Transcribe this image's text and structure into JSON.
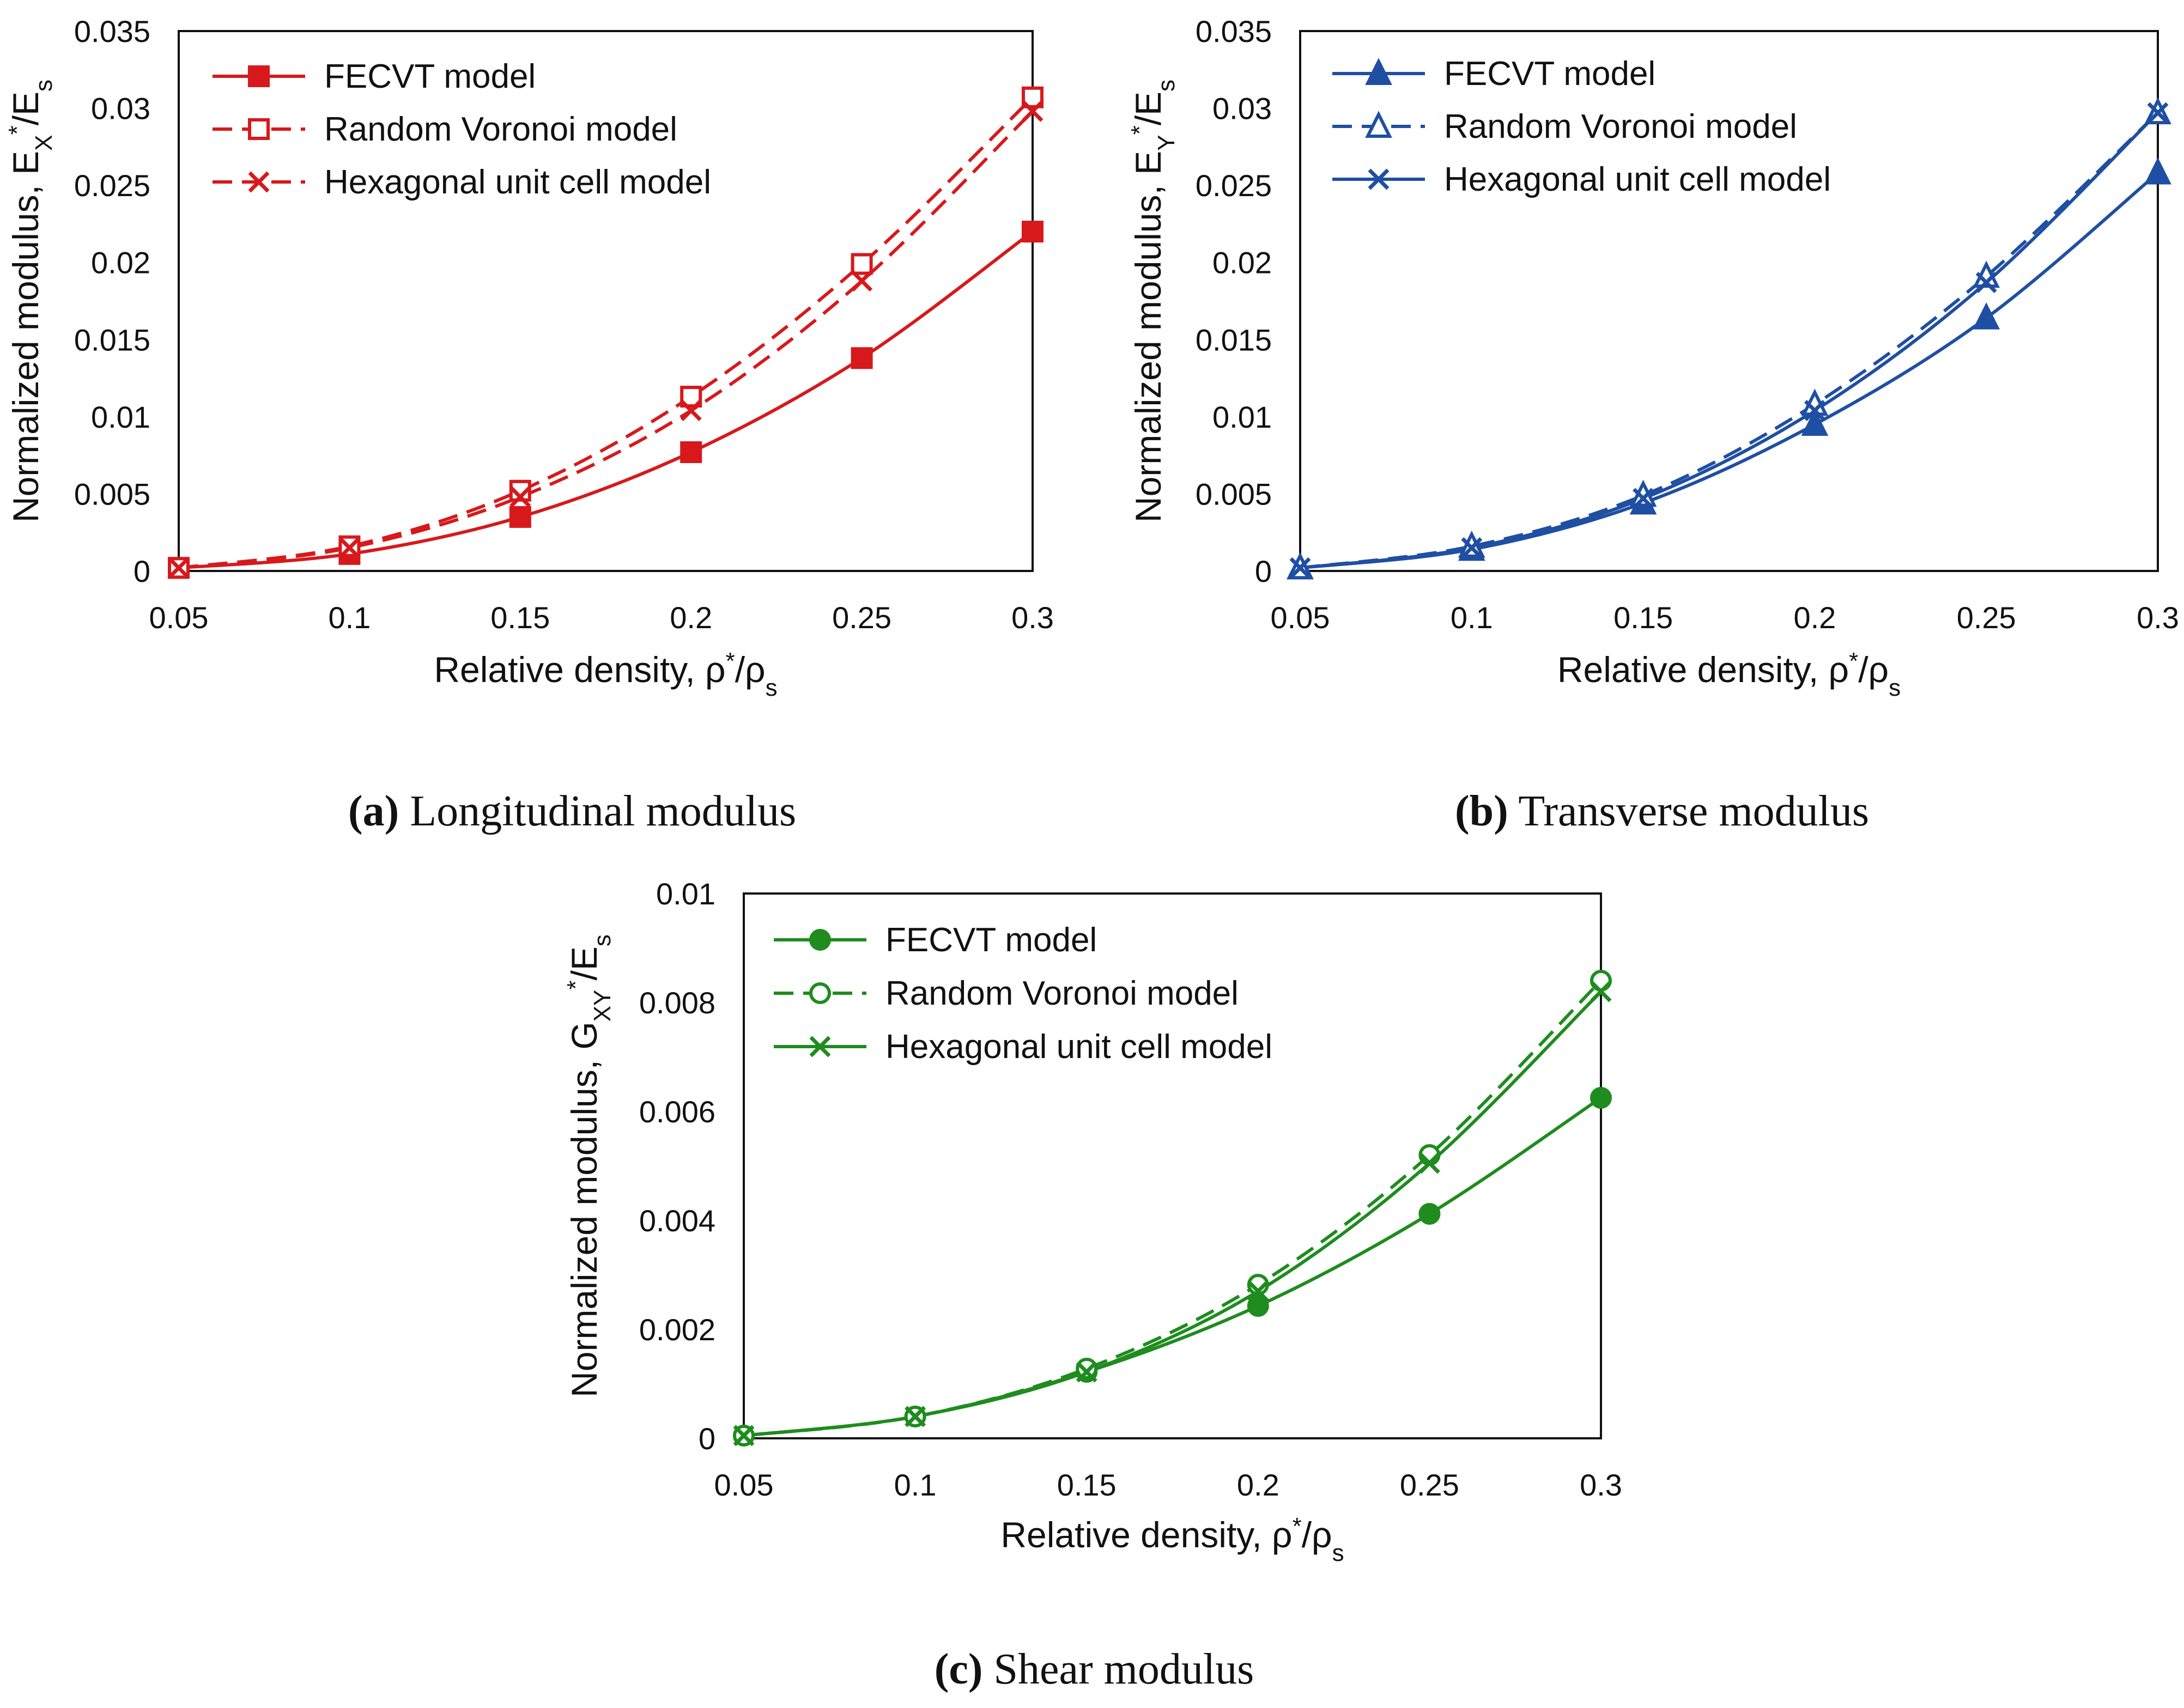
{
  "chart_data": [
    {
      "id": "a",
      "type": "line",
      "color": "#D7191C",
      "title": "",
      "caption": {
        "label": "(a)",
        "text": "Longitudinal modulus"
      },
      "xlabel": "Relative density, ρ*/ρs",
      "xlabel_parts": {
        "main": "Relative density, ρ",
        "sup": "*",
        "mid": "/ρ",
        "sub": "s"
      },
      "ylabel": "Normalized modulus, EX*/Es",
      "ylabel_parts": {
        "main": "Normalized modulus, E",
        "sub1": "X",
        "sup": "*",
        "mid": "/E",
        "sub2": "s"
      },
      "x": [
        0.05,
        0.1,
        0.15,
        0.2,
        0.25,
        0.3
      ],
      "xlim": [
        0.05,
        0.3
      ],
      "ylim": [
        0,
        0.035
      ],
      "x_tick_labels": [
        "0.05",
        "0.1",
        "0.15",
        "0.2",
        "0.25",
        "0.3"
      ],
      "y_tick_labels": [
        "0",
        "0.005",
        "0.01",
        "0.015",
        "0.02",
        "0.025",
        "0.03",
        "0.035"
      ],
      "grid": false,
      "legend_position": "top-left",
      "series": [
        {
          "name": "FECVT model",
          "values": [
            0.0002,
            0.0011,
            0.0035,
            0.0077,
            0.0138,
            0.022
          ],
          "dash": "solid",
          "marker": "square-filled"
        },
        {
          "name": "Random Voronoi model",
          "values": [
            0.0002,
            0.0016,
            0.0052,
            0.0113,
            0.0199,
            0.0307
          ],
          "dash": "dashed",
          "marker": "square-open"
        },
        {
          "name": "Hexagonal unit cell model",
          "values": [
            0.0002,
            0.0015,
            0.0048,
            0.0104,
            0.0188,
            0.0298
          ],
          "dash": "dashed",
          "marker": "cross"
        }
      ]
    },
    {
      "id": "b",
      "type": "line",
      "color": "#1F4FA3",
      "title": "",
      "caption": {
        "label": "(b)",
        "text": "Transverse modulus"
      },
      "xlabel": "Relative density, ρ*/ρs",
      "xlabel_parts": {
        "main": "Relative density, ρ",
        "sup": "*",
        "mid": "/ρ",
        "sub": "s"
      },
      "ylabel": "Normalized modulus, EY*/Es",
      "ylabel_parts": {
        "main": "Normalized modulus, E",
        "sub1": "Y",
        "sup": "*",
        "mid": "/E",
        "sub2": "s"
      },
      "x": [
        0.05,
        0.1,
        0.15,
        0.2,
        0.25,
        0.3
      ],
      "xlim": [
        0.05,
        0.3
      ],
      "ylim": [
        0,
        0.035
      ],
      "x_tick_labels": [
        "0.05",
        "0.1",
        "0.15",
        "0.2",
        "0.25",
        "0.3"
      ],
      "y_tick_labels": [
        "0",
        "0.005",
        "0.01",
        "0.015",
        "0.02",
        "0.025",
        "0.03",
        "0.035"
      ],
      "grid": false,
      "legend_position": "top-left",
      "series": [
        {
          "name": "FECVT model",
          "values": [
            0.0002,
            0.0014,
            0.0044,
            0.0095,
            0.0164,
            0.0258
          ],
          "dash": "solid",
          "marker": "triangle-filled"
        },
        {
          "name": "Random Voronoi model",
          "values": [
            0.0002,
            0.0016,
            0.0049,
            0.0108,
            0.0191,
            0.0297
          ],
          "dash": "dashed",
          "marker": "triangle-open"
        },
        {
          "name": "Hexagonal unit cell model",
          "values": [
            0.0002,
            0.0015,
            0.0047,
            0.0104,
            0.0187,
            0.0297
          ],
          "dash": "solid",
          "marker": "cross"
        }
      ]
    },
    {
      "id": "c",
      "type": "line",
      "color": "#1E8C1E",
      "title": "",
      "caption": {
        "label": "(c)",
        "text": "Shear modulus"
      },
      "xlabel": "Relative density, ρ*/ρs",
      "xlabel_parts": {
        "main": "Relative density, ρ",
        "sup": "*",
        "mid": "/ρ",
        "sub": "s"
      },
      "ylabel": "Normalized modulus, GXY*/Es",
      "ylabel_parts": {
        "main": "Normalized modulus, G",
        "sub1": "XY",
        "sup": "*",
        "mid": "/E",
        "sub2": "s"
      },
      "x": [
        0.05,
        0.1,
        0.15,
        0.2,
        0.25,
        0.3
      ],
      "xlim": [
        0.05,
        0.3
      ],
      "ylim": [
        0,
        0.01
      ],
      "x_tick_labels": [
        "0.05",
        "0.1",
        "0.15",
        "0.2",
        "0.25",
        "0.3"
      ],
      "y_tick_labels": [
        "0",
        "0.002",
        "0.004",
        "0.006",
        "0.008",
        "0.01"
      ],
      "grid": false,
      "legend_position": "top-left",
      "series": [
        {
          "name": "FECVT model",
          "values": [
            5e-05,
            0.0004,
            0.00122,
            0.00243,
            0.00412,
            0.00625
          ],
          "dash": "solid",
          "marker": "circle-filled"
        },
        {
          "name": "Random Voronoi model",
          "values": [
            5e-05,
            0.0004,
            0.00128,
            0.00282,
            0.0052,
            0.0084
          ],
          "dash": "dashed",
          "marker": "circle-open"
        },
        {
          "name": "Hexagonal unit cell model",
          "values": [
            5e-05,
            0.0004,
            0.00122,
            0.0027,
            0.00505,
            0.0082
          ],
          "dash": "solid",
          "marker": "cross"
        }
      ]
    }
  ]
}
